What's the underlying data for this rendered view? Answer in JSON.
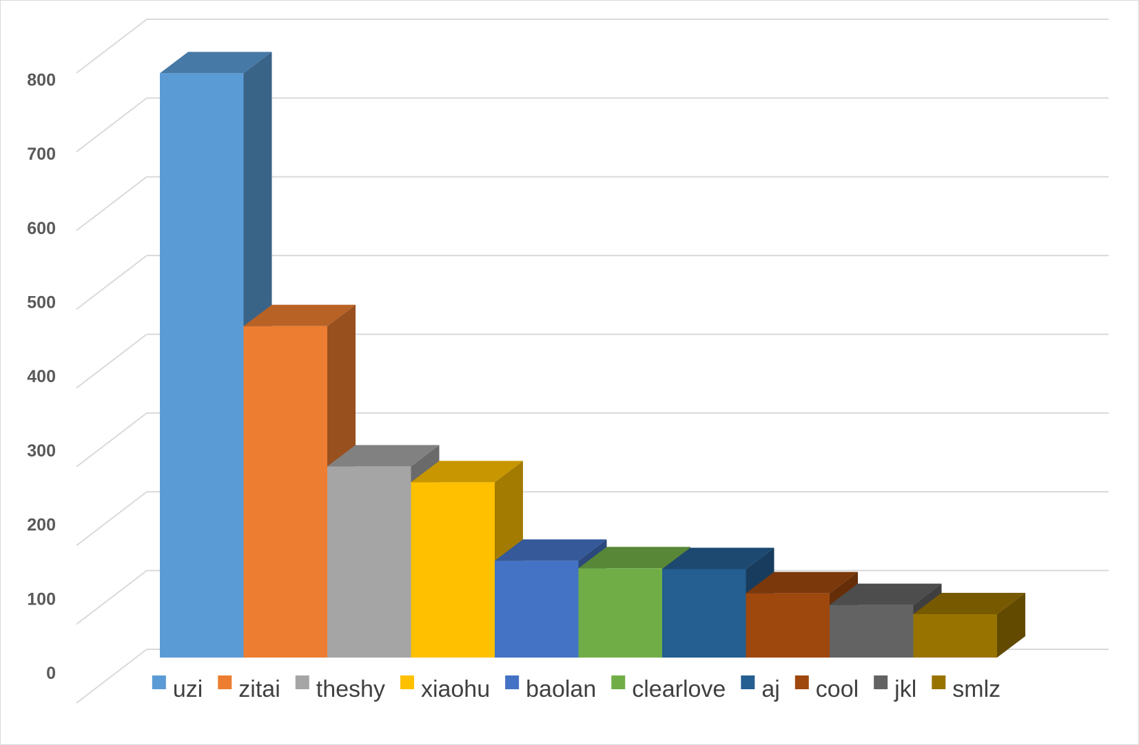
{
  "chart_data": {
    "type": "bar",
    "style": "3d-column",
    "title": "",
    "xlabel": "",
    "ylabel": "",
    "ylim": [
      0,
      800
    ],
    "y_ticks": [
      0,
      100,
      200,
      300,
      400,
      500,
      600,
      700,
      800
    ],
    "grid": true,
    "legend_position": "bottom",
    "series": [
      {
        "name": "uzi",
        "value": 700,
        "color": "#5B9BD5"
      },
      {
        "name": "zitai",
        "value": 397,
        "color": "#ED7D31"
      },
      {
        "name": "theshy",
        "value": 229,
        "color": "#A5A5A5"
      },
      {
        "name": "xiaohu",
        "value": 210,
        "color": "#FFC000"
      },
      {
        "name": "baolan",
        "value": 116,
        "color": "#4472C4"
      },
      {
        "name": "clearlove",
        "value": 107,
        "color": "#70AD47"
      },
      {
        "name": "aj",
        "value": 106,
        "color": "#255E91"
      },
      {
        "name": "cool",
        "value": 77,
        "color": "#9E480E"
      },
      {
        "name": "jkl",
        "value": 63,
        "color": "#636363"
      },
      {
        "name": "smlz",
        "value": 52,
        "color": "#997300"
      }
    ]
  }
}
